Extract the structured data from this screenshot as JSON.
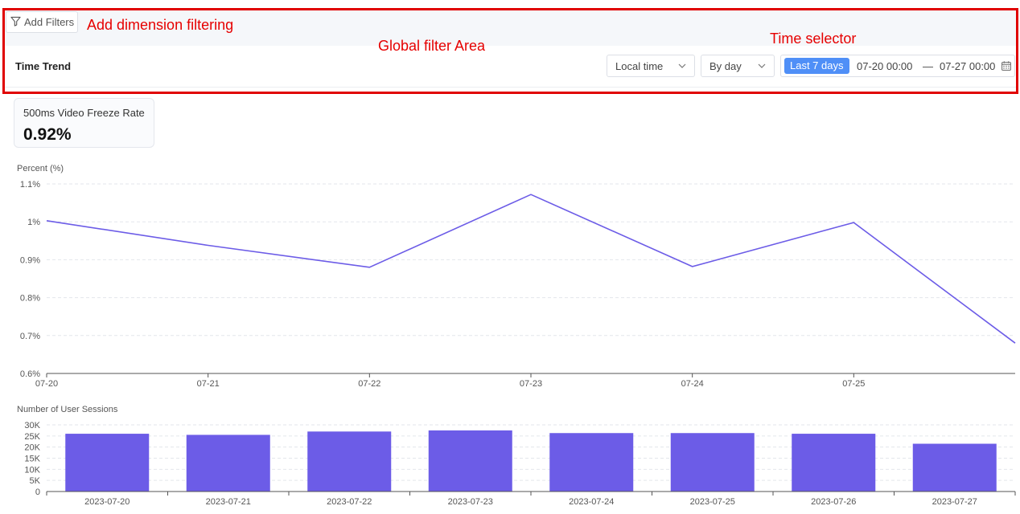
{
  "toolbar": {
    "add_filters_label": "Add Filters"
  },
  "trend_bar": {
    "title": "Time Trend",
    "timezone_select": "Local time",
    "granularity_select": "By day",
    "range_preset": "Last 7 days",
    "range_start": "07-20 00:00",
    "range_separator": "—",
    "range_end": "07-27 00:00"
  },
  "annotations": {
    "add_dimension": "Add dimension filtering",
    "global_filter": "Global filter Area",
    "time_selector": "Time selector"
  },
  "metric": {
    "label": "500ms Video Freeze Rate",
    "value": "0.92%"
  },
  "colors": {
    "accent": "#4f8ff7",
    "series": "#6c5ce7",
    "annotation": "#e00000"
  },
  "icons": [
    "filter-icon",
    "chevron-down-icon",
    "calendar-icon"
  ],
  "chart_data": [
    {
      "type": "line",
      "ylabel": "Percent (%)",
      "x": [
        "07-20",
        "07-21",
        "07-22",
        "07-23",
        "07-24",
        "07-25",
        "07-26"
      ],
      "x_tick_labels": [
        "07-20",
        "07-21",
        "07-22",
        "07-23",
        "07-24",
        "07-25"
      ],
      "values": [
        1.003,
        0.938,
        0.88,
        1.072,
        0.882,
        0.998,
        0.68
      ],
      "ylim": [
        0.6,
        1.1
      ],
      "y_ticks": [
        "0.6%",
        "0.7%",
        "0.8%",
        "0.9%",
        "1%",
        "1.1%"
      ],
      "grid": true
    },
    {
      "type": "bar",
      "ylabel": "Number of User Sessions",
      "categories": [
        "2023-07-20",
        "2023-07-21",
        "2023-07-22",
        "2023-07-23",
        "2023-07-24",
        "2023-07-25",
        "2023-07-26",
        "2023-07-27"
      ],
      "values": [
        26000,
        25500,
        27000,
        27500,
        26300,
        26300,
        26000,
        21500
      ],
      "ylim": [
        0,
        30000
      ],
      "y_ticks": [
        "0",
        "5K",
        "10K",
        "15K",
        "20K",
        "25K",
        "30K"
      ],
      "grid": true
    }
  ]
}
